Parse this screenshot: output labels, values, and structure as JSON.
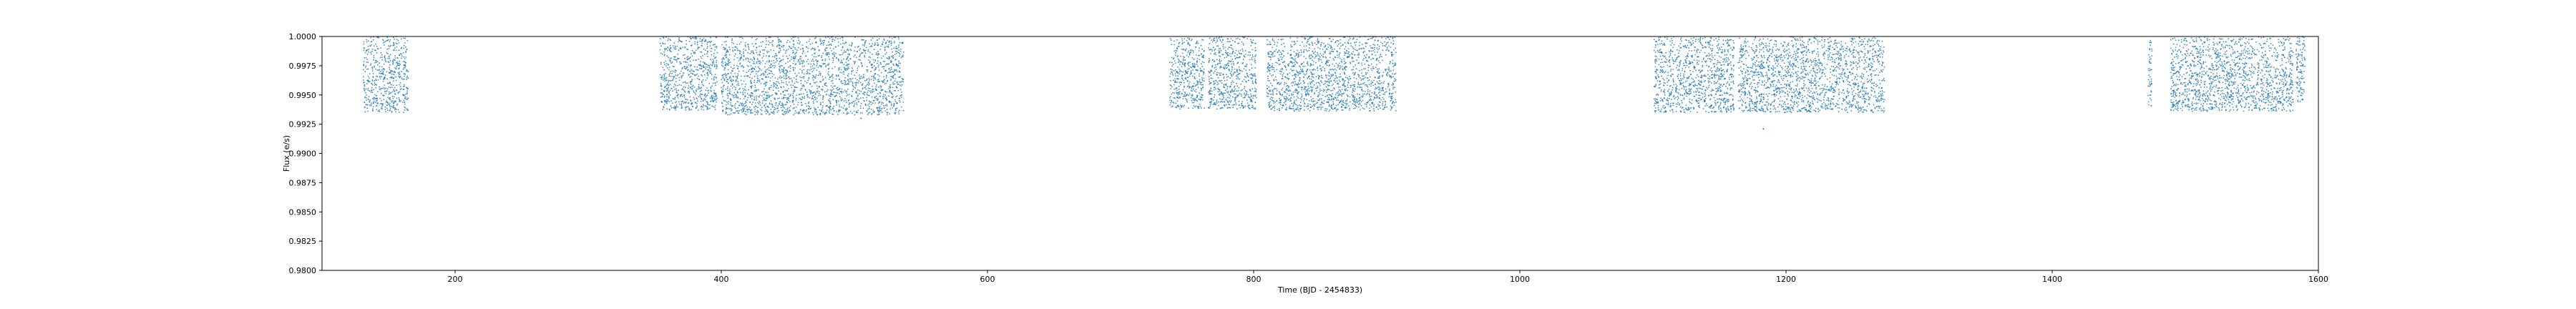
{
  "chart_data": {
    "type": "scatter",
    "title": "",
    "xlabel": "Time (BJD - 2454833)",
    "ylabel": "Flux (e/s)",
    "xlim": [
      100,
      1600
    ],
    "ylim": [
      0.98,
      1.0
    ],
    "xticks": [
      200,
      400,
      600,
      800,
      1000,
      1200,
      1400,
      1600
    ],
    "xtick_labels": [
      "200",
      "400",
      "600",
      "800",
      "1000",
      "1200",
      "1400",
      "1600"
    ],
    "yticks": [
      0.98,
      0.9825,
      0.985,
      0.9875,
      0.99,
      0.9925,
      0.995,
      0.9975,
      1.0
    ],
    "ytick_labels": [
      "0.9800",
      "0.9825",
      "0.9850",
      "0.9875",
      "0.9900",
      "0.9925",
      "0.9950",
      "0.9975",
      "1.0000"
    ],
    "grid": false,
    "marker_color": "#1f77b4",
    "series": [
      {
        "observing_segments": [
          {
            "x_start": 131,
            "x_end": 165,
            "flux_min": 0.9935,
            "flux_max": 1.0
          },
          {
            "x_start": 354,
            "x_end": 397,
            "flux_min": 0.9937,
            "flux_max": 1.0
          },
          {
            "x_start": 400,
            "x_end": 537,
            "flux_min": 0.9933,
            "flux_max": 1.0
          },
          {
            "x_start": 737,
            "x_end": 763,
            "flux_min": 0.9938,
            "flux_max": 1.0
          },
          {
            "x_start": 766,
            "x_end": 802,
            "flux_min": 0.9938,
            "flux_max": 1.0
          },
          {
            "x_start": 810,
            "x_end": 907,
            "flux_min": 0.9936,
            "flux_max": 1.0
          },
          {
            "x_start": 1101,
            "x_end": 1161,
            "flux_min": 0.9935,
            "flux_max": 1.0
          },
          {
            "x_start": 1164,
            "x_end": 1274,
            "flux_min": 0.9935,
            "flux_max": 1.0
          },
          {
            "x_start": 1472,
            "x_end": 1475,
            "flux_min": 0.9939,
            "flux_max": 1.0
          },
          {
            "x_start": 1489,
            "x_end": 1581,
            "flux_min": 0.9936,
            "flux_max": 1.0
          },
          {
            "x_start": 1583,
            "x_end": 1590,
            "flux_min": 0.9944,
            "flux_max": 1.0
          }
        ],
        "outliers": [
          {
            "x": 1183,
            "y": 0.9921
          },
          {
            "x": 505,
            "y": 0.993
          }
        ]
      }
    ]
  }
}
